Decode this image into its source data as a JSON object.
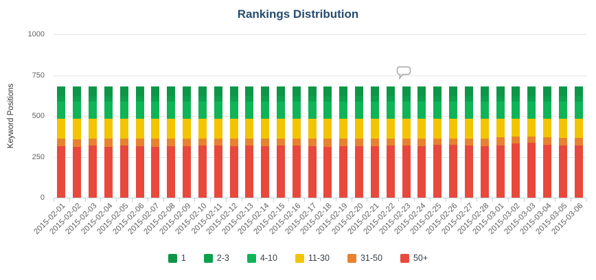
{
  "chart_data": {
    "type": "bar",
    "stacked": true,
    "title": "Rankings Distribution",
    "ylabel": "Keyword Positions",
    "xlabel": "",
    "ylim": [
      0,
      1000
    ],
    "y_ticks": [
      0,
      250,
      500,
      750,
      1000
    ],
    "grid": true,
    "legend_position": "bottom",
    "categories": [
      "2015-02-01",
      "2015-02-02",
      "2015-02-03",
      "2015-02-04",
      "2015-02-05",
      "2015-02-06",
      "2015-02-07",
      "2015-02-08",
      "2015-02-09",
      "2015-02-10",
      "2015-02-11",
      "2015-02-12",
      "2015-02-13",
      "2015-02-14",
      "2015-02-15",
      "2015-02-16",
      "2015-02-17",
      "2015-02-18",
      "2015-02-19",
      "2015-02-20",
      "2015-02-21",
      "2015-02-22",
      "2015-02-23",
      "2015-02-24",
      "2015-02-25",
      "2015-02-26",
      "2015-02-27",
      "2015-02-28",
      "2015-03-01",
      "2015-03-02",
      "2015-03-03",
      "2015-03-04",
      "2015-03-05",
      "2015-03-06"
    ],
    "series": [
      {
        "name": "1",
        "color": "#0d9648",
        "values": [
          60,
          60,
          60,
          60,
          60,
          60,
          60,
          60,
          60,
          60,
          60,
          60,
          60,
          60,
          60,
          60,
          60,
          60,
          60,
          60,
          60,
          60,
          60,
          60,
          60,
          60,
          60,
          60,
          60,
          60,
          60,
          60,
          60,
          60
        ]
      },
      {
        "name": "2-3",
        "color": "#0ba14d",
        "values": [
          30,
          30,
          30,
          30,
          30,
          30,
          30,
          30,
          30,
          30,
          30,
          30,
          30,
          30,
          30,
          30,
          30,
          30,
          30,
          30,
          30,
          30,
          30,
          30,
          30,
          30,
          30,
          30,
          30,
          30,
          30,
          30,
          30,
          30
        ]
      },
      {
        "name": "4-10",
        "color": "#0fb457",
        "values": [
          105,
          105,
          105,
          105,
          105,
          105,
          105,
          105,
          105,
          105,
          105,
          105,
          105,
          105,
          105,
          105,
          105,
          105,
          105,
          105,
          105,
          105,
          105,
          105,
          105,
          105,
          105,
          105,
          105,
          105,
          105,
          105,
          105,
          105
        ]
      },
      {
        "name": "11-30",
        "color": "#f2c500",
        "values": [
          125,
          127,
          123,
          125,
          123,
          125,
          125,
          125,
          125,
          125,
          125,
          125,
          125,
          125,
          125,
          125,
          125,
          125,
          125,
          125,
          125,
          125,
          125,
          125,
          122,
          123,
          123,
          125,
          117,
          113,
          110,
          115,
          119,
          121
        ]
      },
      {
        "name": "31-50",
        "color": "#e8822e",
        "values": [
          45,
          48,
          42,
          50,
          44,
          45,
          48,
          44,
          46,
          42,
          40,
          45,
          42,
          44,
          40,
          42,
          45,
          48,
          44,
          46,
          45,
          42,
          40,
          44,
          38,
          40,
          44,
          45,
          48,
          42,
          40,
          45,
          48,
          44
        ]
      },
      {
        "name": "50+",
        "color": "#e8493c",
        "values": [
          315,
          310,
          320,
          310,
          318,
          315,
          312,
          316,
          314,
          318,
          320,
          315,
          318,
          316,
          320,
          318,
          315,
          312,
          316,
          314,
          315,
          318,
          320,
          316,
          325,
          322,
          318,
          315,
          320,
          330,
          335,
          325,
          318,
          320
        ]
      }
    ],
    "annotation": {
      "icon": "speech-bubble-icon",
      "y_value": 750,
      "x_fraction": 0.657
    }
  }
}
